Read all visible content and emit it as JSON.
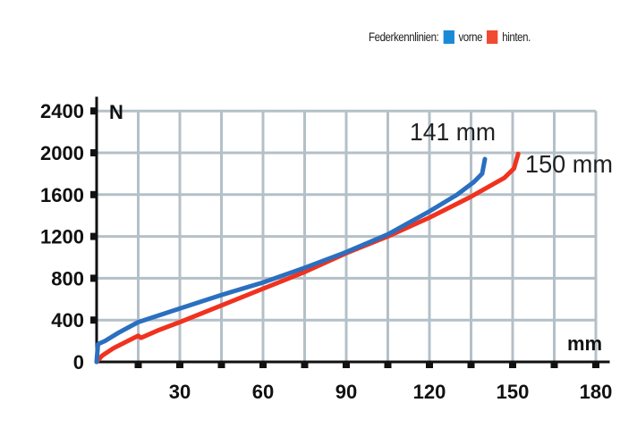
{
  "chart_data": {
    "type": "line",
    "title": "",
    "legend": {
      "label": "Federkennlinien:",
      "placement": "top-right"
    },
    "xlabel": "mm",
    "ylabel": "N",
    "xlim": [
      0,
      185
    ],
    "ylim": [
      0,
      2400
    ],
    "xticks": [
      30,
      60,
      90,
      120,
      150,
      180
    ],
    "yticks": [
      0,
      400,
      800,
      1200,
      1600,
      2000,
      2400
    ],
    "grid": true,
    "series": [
      {
        "name": "vorne",
        "color": "#2a6fc0",
        "legend_color": "#1a8ad8",
        "x": [
          0,
          0.5,
          3,
          8,
          15,
          30,
          45,
          60,
          75,
          90,
          105,
          120,
          130,
          136,
          139,
          140
        ],
        "y": [
          0,
          170,
          200,
          280,
          380,
          510,
          640,
          760,
          900,
          1050,
          1220,
          1440,
          1600,
          1720,
          1800,
          1940
        ]
      },
      {
        "name": "hinten.",
        "color": "#f0321e",
        "legend_color": "#f04a30",
        "x": [
          0,
          2,
          6,
          12,
          15,
          16,
          22,
          30,
          45,
          60,
          75,
          90,
          105,
          120,
          135,
          147,
          150.5,
          152
        ],
        "y": [
          0,
          60,
          130,
          210,
          250,
          230,
          300,
          380,
          540,
          700,
          860,
          1040,
          1200,
          1380,
          1580,
          1760,
          1850,
          1990
        ]
      }
    ],
    "annotations": [
      {
        "text": "141 mm",
        "series": "vorne"
      },
      {
        "text": "150 mm",
        "series": "hinten."
      }
    ]
  }
}
